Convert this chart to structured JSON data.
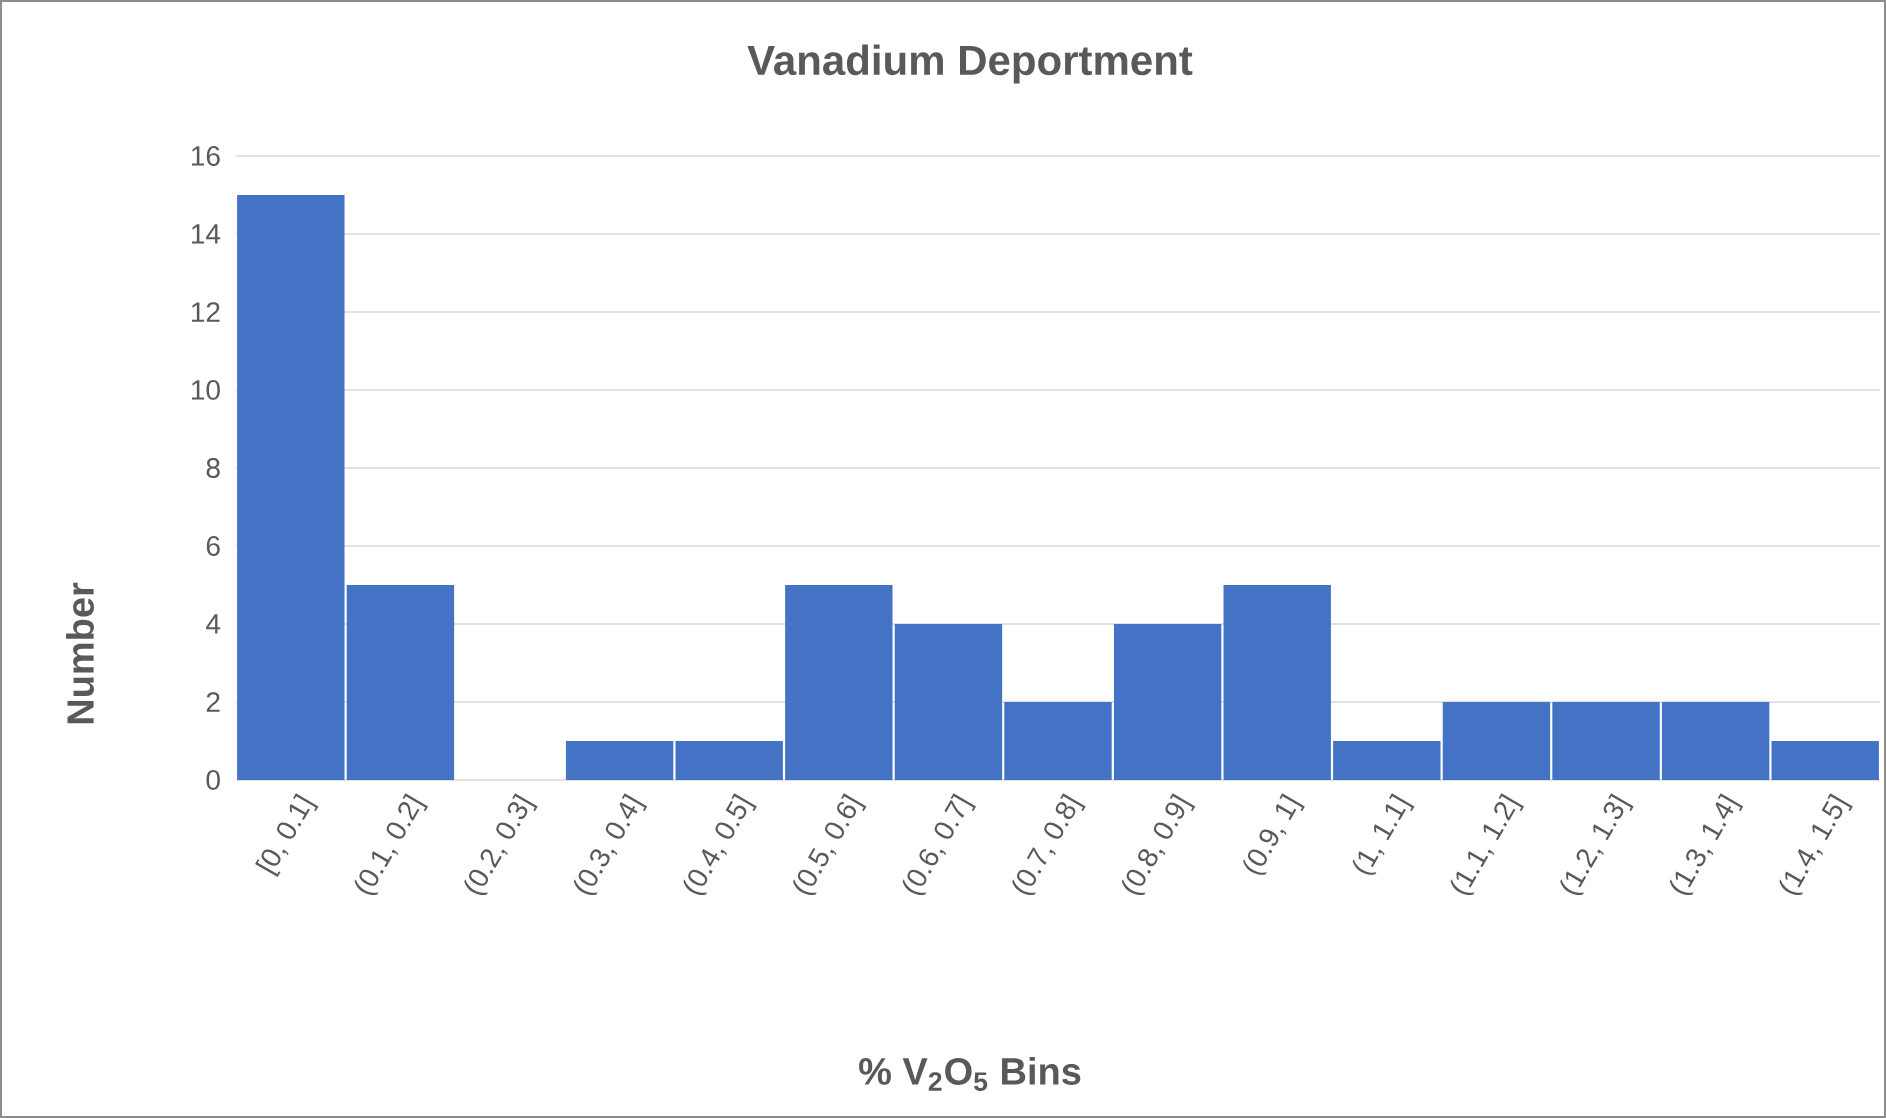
{
  "chart_data": {
    "type": "bar",
    "title": "Vanadium Deportment",
    "xlabel": "% V$_{2}$O$_{5}$ Bins",
    "ylabel": "Number",
    "categories": [
      "[0, 0.1]",
      "(0.1, 0.2]",
      "(0.2, 0.3]",
      "(0.3, 0.4]",
      "(0.4, 0.5]",
      "(0.5, 0.6]",
      "(0.6, 0.7]",
      "(0.7, 0.8]",
      "(0.8, 0.9]",
      "(0.9, 1]",
      "(1, 1.1]",
      "(1.1, 1.2]",
      "(1.2, 1.3]",
      "(1.3, 1.4]",
      "(1.4, 1.5]"
    ],
    "values": [
      15,
      5,
      0,
      1,
      1,
      5,
      4,
      2,
      4,
      5,
      1,
      2,
      2,
      2,
      1
    ],
    "color": "#4472c4",
    "ylim": [
      0,
      16
    ],
    "yticks": [
      0,
      2,
      4,
      6,
      8,
      10,
      12,
      14,
      16
    ],
    "grid": "y"
  }
}
